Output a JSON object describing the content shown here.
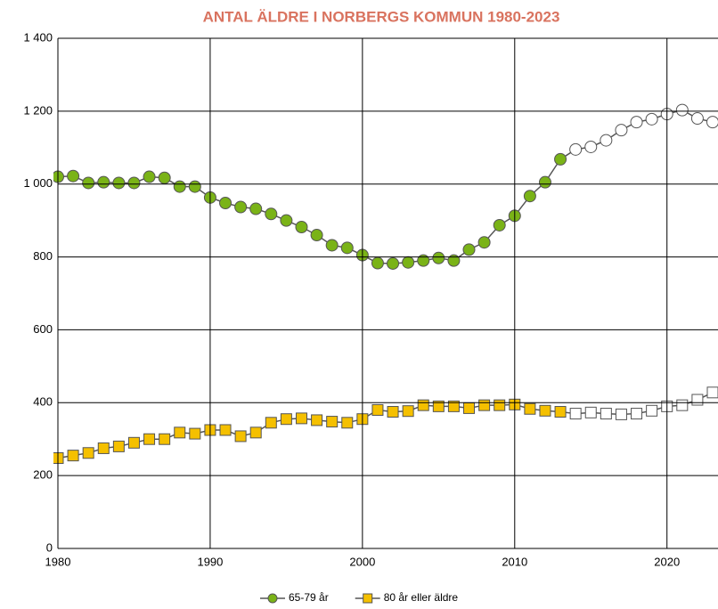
{
  "chart_data": {
    "type": "line",
    "title": "ANTAL ÄLDRE I NORBERGS KOMMUN 1980-2023",
    "x": [
      1980,
      1981,
      1982,
      1983,
      1984,
      1985,
      1986,
      1987,
      1988,
      1989,
      1990,
      1991,
      1992,
      1993,
      1994,
      1995,
      1996,
      1997,
      1998,
      1999,
      2000,
      2001,
      2002,
      2003,
      2004,
      2005,
      2006,
      2007,
      2008,
      2009,
      2010,
      2011,
      2012,
      2013,
      2014,
      2015,
      2016,
      2017,
      2018,
      2019,
      2020,
      2021,
      2022,
      2023
    ],
    "series": [
      {
        "name": "65-79 år",
        "color": "#7ab317",
        "marker": "circle",
        "values": [
          1020,
          1022,
          1003,
          1005,
          1003,
          1003,
          1020,
          1017,
          993,
          993,
          963,
          948,
          937,
          932,
          918,
          900,
          882,
          860,
          832,
          825,
          805,
          783,
          782,
          785,
          790,
          797,
          790,
          820,
          840,
          887,
          913,
          967,
          1005,
          1068,
          1095,
          1102,
          1120,
          1148,
          1170,
          1178,
          1192,
          1203,
          1180,
          1170
        ]
      },
      {
        "name": "80 år eller äldre",
        "color": "#f5c000",
        "marker": "square",
        "values": [
          248,
          255,
          262,
          275,
          280,
          290,
          300,
          300,
          318,
          315,
          325,
          325,
          308,
          318,
          345,
          355,
          357,
          352,
          348,
          345,
          355,
          380,
          375,
          377,
          393,
          390,
          390,
          385,
          393,
          393,
          395,
          383,
          378,
          375,
          370,
          373,
          370,
          368,
          370,
          378,
          390,
          393,
          408,
          428
        ]
      }
    ],
    "projection_start": 2014,
    "xlim": [
      1980,
      2023
    ],
    "xticks": [
      1980,
      1990,
      2000,
      2010,
      2020
    ],
    "ylim": [
      0,
      1400
    ],
    "yticks": [
      0,
      200,
      400,
      600,
      800,
      {
        "value": 1000,
        "label": "1 000"
      },
      {
        "value": 1200,
        "label": "1 200"
      },
      {
        "value": 1400,
        "label": "1 400"
      }
    ],
    "grid": true,
    "legend": "bottom"
  }
}
